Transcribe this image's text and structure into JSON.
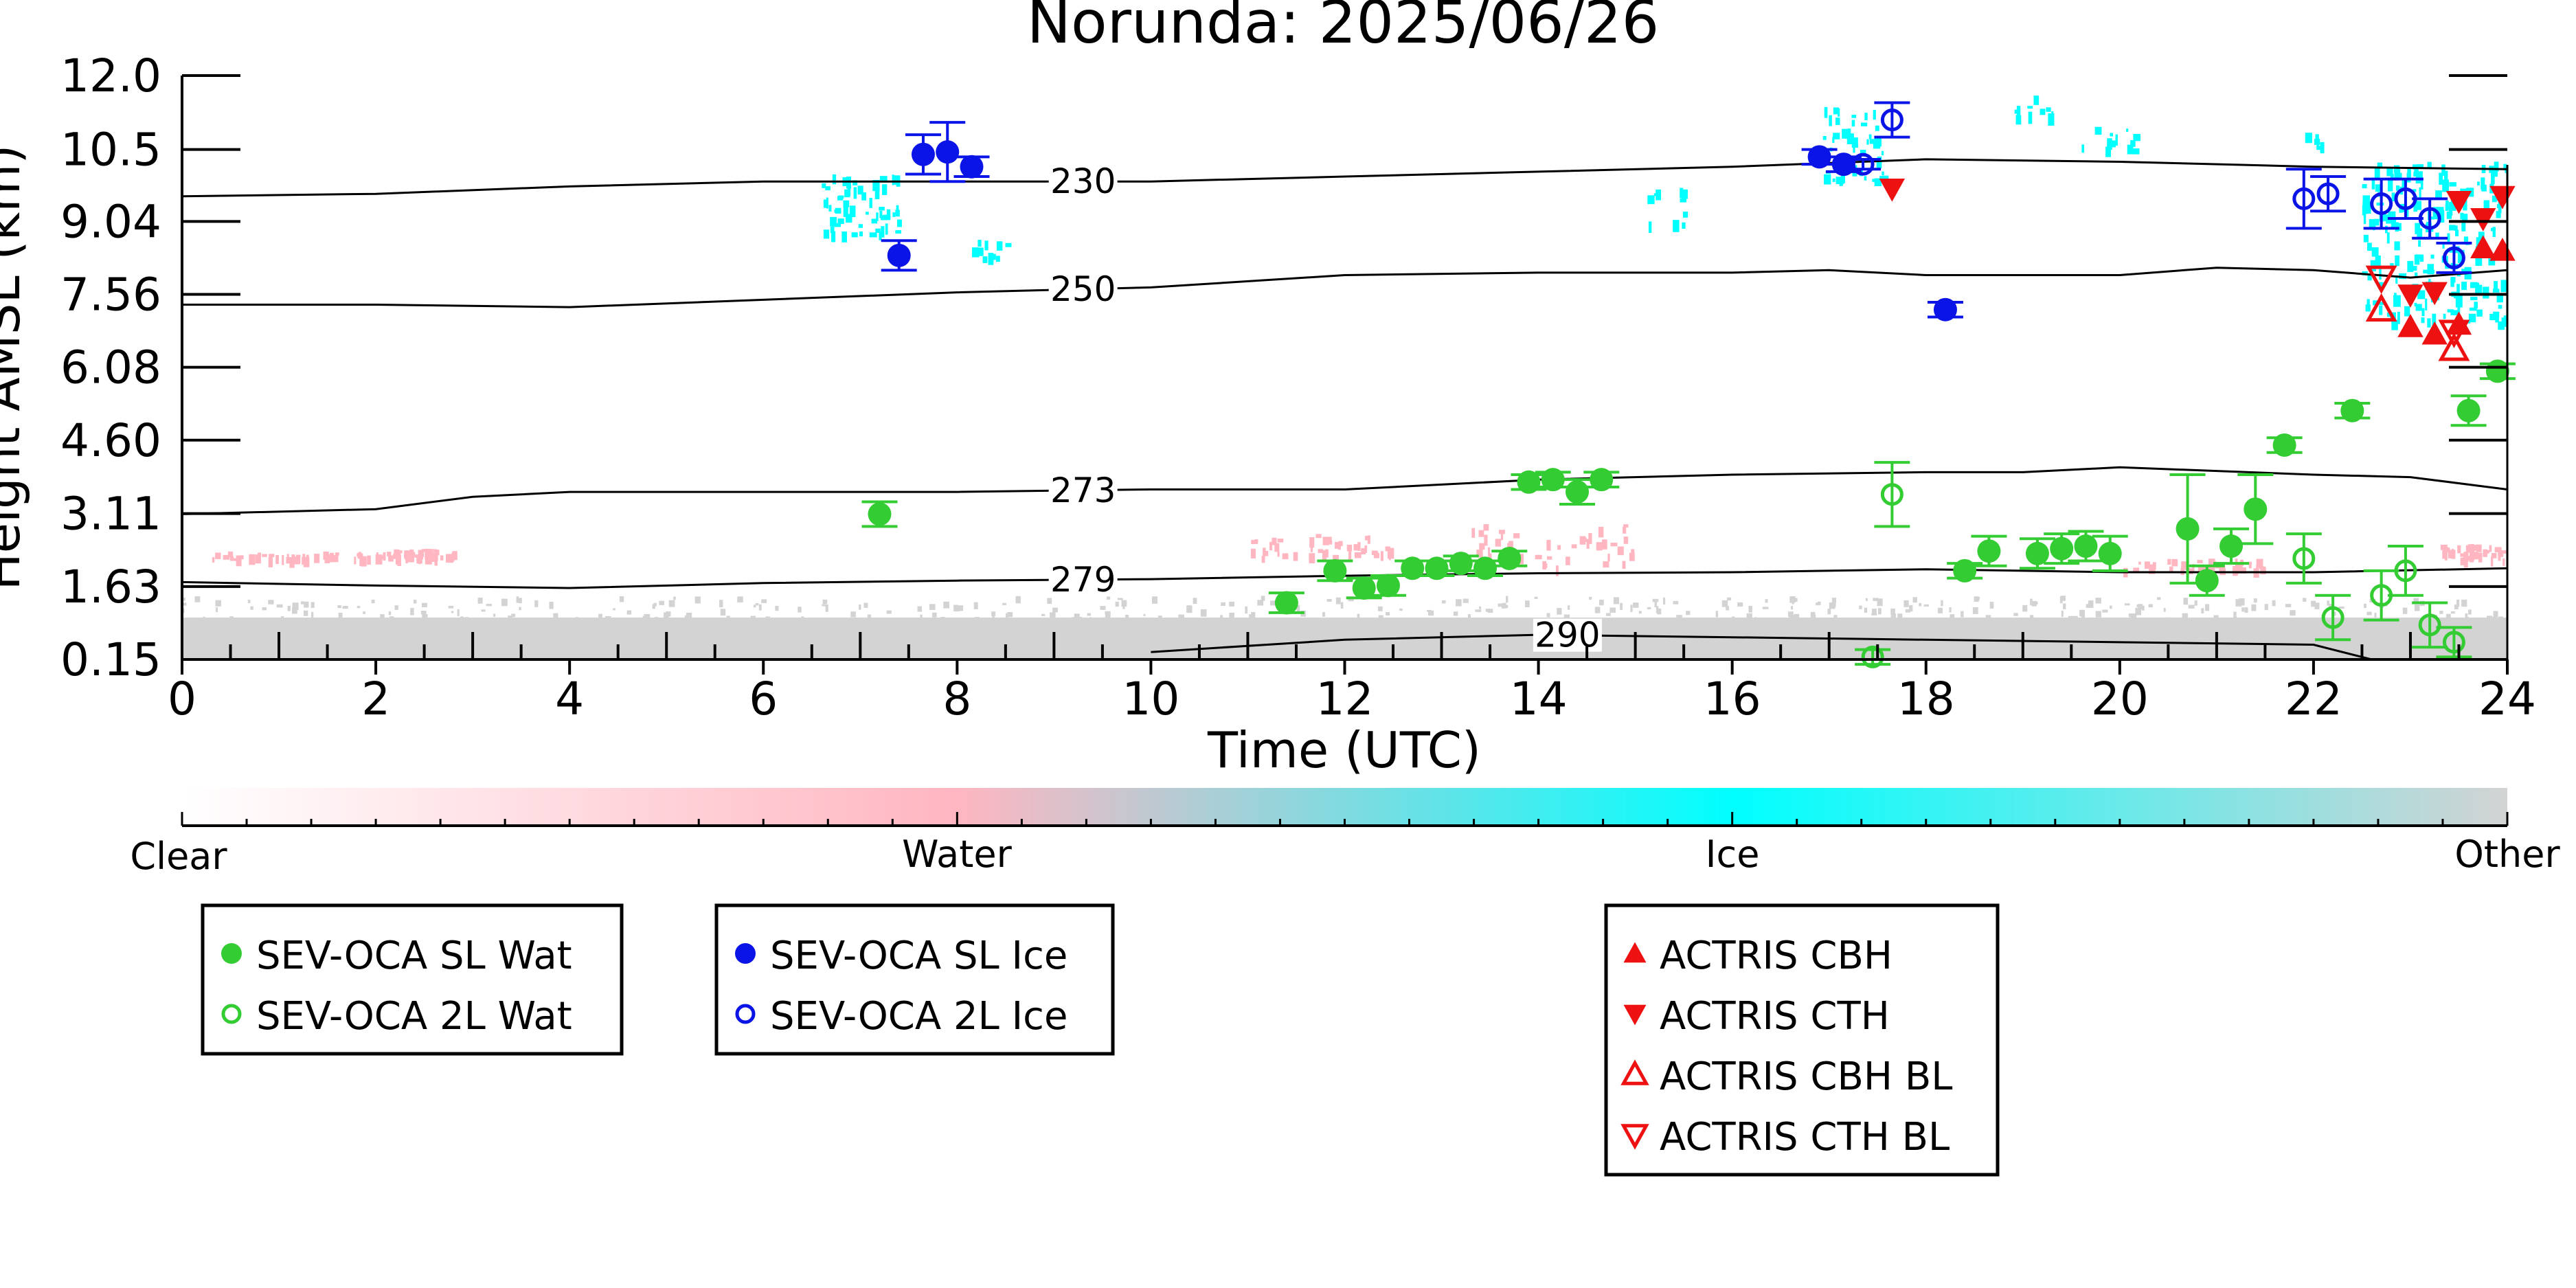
{
  "chart_data": {
    "type": "scatter",
    "title": "Norunda: 2025/06/26",
    "xlabel": "Time (UTC)",
    "ylabel": "Height AMSL (km)",
    "xlim": [
      0,
      24
    ],
    "ylim": [
      0.15,
      12.0
    ],
    "x_ticks": [
      "0",
      "2",
      "4",
      "6",
      "8",
      "10",
      "12",
      "14",
      "16",
      "18",
      "20",
      "22",
      "24"
    ],
    "y_ticks": [
      "0.15",
      "1.63",
      "3.11",
      "4.60",
      "6.08",
      "7.56",
      "9.04",
      "10.5",
      "12.0"
    ],
    "colorbar": {
      "labels": [
        "Clear",
        "Water",
        "Ice",
        "Other"
      ],
      "colors": [
        "#ffffff",
        "#ffb6c1",
        "#00ffff",
        "#d3d3d3"
      ]
    },
    "isotherms": [
      {
        "label": "230",
        "label_x": 9.3,
        "points": [
          [
            0,
            9.55
          ],
          [
            2,
            9.6
          ],
          [
            4,
            9.75
          ],
          [
            6,
            9.85
          ],
          [
            8,
            9.85
          ],
          [
            10,
            9.85
          ],
          [
            12,
            9.95
          ],
          [
            14,
            10.05
          ],
          [
            16,
            10.15
          ],
          [
            18,
            10.3
          ],
          [
            20,
            10.25
          ],
          [
            22,
            10.15
          ],
          [
            24,
            10.1
          ]
        ]
      },
      {
        "label": "250",
        "label_x": 9.3,
        "points": [
          [
            0,
            7.35
          ],
          [
            2,
            7.35
          ],
          [
            4,
            7.3
          ],
          [
            6,
            7.45
          ],
          [
            8,
            7.6
          ],
          [
            10,
            7.7
          ],
          [
            12,
            7.95
          ],
          [
            14,
            8.0
          ],
          [
            16,
            8.0
          ],
          [
            17,
            8.05
          ],
          [
            18,
            7.95
          ],
          [
            20,
            7.95
          ],
          [
            21,
            8.1
          ],
          [
            22,
            8.05
          ],
          [
            23,
            7.9
          ],
          [
            24,
            8.05
          ]
        ]
      },
      {
        "label": "273",
        "label_x": 9.3,
        "points": [
          [
            0,
            3.1
          ],
          [
            2,
            3.2
          ],
          [
            3,
            3.45
          ],
          [
            4,
            3.55
          ],
          [
            6,
            3.55
          ],
          [
            8,
            3.55
          ],
          [
            10,
            3.6
          ],
          [
            12,
            3.6
          ],
          [
            13,
            3.7
          ],
          [
            14,
            3.8
          ],
          [
            16,
            3.9
          ],
          [
            18,
            3.95
          ],
          [
            19,
            3.95
          ],
          [
            20,
            4.05
          ],
          [
            22,
            3.9
          ],
          [
            23,
            3.85
          ],
          [
            24,
            3.6
          ]
        ]
      },
      {
        "label": "279",
        "label_x": 9.3,
        "points": [
          [
            0,
            1.72
          ],
          [
            2,
            1.65
          ],
          [
            4,
            1.6
          ],
          [
            6,
            1.7
          ],
          [
            8,
            1.75
          ],
          [
            10,
            1.78
          ],
          [
            12,
            1.85
          ],
          [
            14,
            1.9
          ],
          [
            16,
            1.92
          ],
          [
            18,
            1.98
          ],
          [
            20,
            1.92
          ],
          [
            22,
            1.92
          ],
          [
            24,
            2.0
          ]
        ]
      },
      {
        "label": "290",
        "label_x": 14.3,
        "points": [
          [
            10,
            0.3
          ],
          [
            12,
            0.55
          ],
          [
            14,
            0.65
          ],
          [
            16,
            0.6
          ],
          [
            18,
            0.55
          ],
          [
            20,
            0.5
          ],
          [
            22,
            0.45
          ],
          [
            22.6,
            0.15
          ]
        ]
      }
    ],
    "series": [
      {
        "name": "SEV-OCA SL Wat",
        "color": "#33cc33",
        "marker": "filled-circle",
        "points": [
          [
            7.2,
            3.1,
            0.25
          ],
          [
            11.4,
            1.3,
            0.2
          ],
          [
            11.9,
            1.95,
            0.2
          ],
          [
            12.2,
            1.6,
            0.2
          ],
          [
            12.45,
            1.65,
            0.2
          ],
          [
            12.7,
            2.0,
            0.15
          ],
          [
            12.95,
            2.0,
            0.15
          ],
          [
            13.2,
            2.1,
            0.15
          ],
          [
            13.45,
            2.0,
            0.15
          ],
          [
            13.7,
            2.2,
            0.15
          ],
          [
            13.9,
            3.75,
            0.15
          ],
          [
            14.15,
            3.8,
            0.15
          ],
          [
            14.4,
            3.55,
            0.25
          ],
          [
            14.65,
            3.8,
            0.15
          ],
          [
            18.4,
            1.95,
            0.15
          ],
          [
            18.65,
            2.35,
            0.3
          ],
          [
            19.15,
            2.3,
            0.3
          ],
          [
            19.4,
            2.4,
            0.3
          ],
          [
            19.65,
            2.45,
            0.3
          ],
          [
            19.9,
            2.3,
            0.35
          ],
          [
            20.7,
            2.8,
            1.1
          ],
          [
            20.9,
            1.75,
            0.3
          ],
          [
            21.15,
            2.45,
            0.35
          ],
          [
            21.4,
            3.2,
            0.7
          ],
          [
            21.7,
            4.5,
            0.15
          ],
          [
            22.4,
            5.2,
            0.15
          ],
          [
            23.6,
            5.2,
            0.3
          ],
          [
            23.9,
            6.0,
            0.15
          ]
        ]
      },
      {
        "name": "SEV-OCA 2L Wat",
        "color": "#33cc33",
        "marker": "open-circle",
        "points": [
          [
            17.45,
            0.2,
            0.15
          ],
          [
            17.65,
            3.5,
            0.65
          ],
          [
            21.9,
            2.2,
            0.5
          ],
          [
            22.2,
            1.0,
            0.45
          ],
          [
            22.7,
            1.45,
            0.5
          ],
          [
            22.95,
            1.95,
            0.5
          ],
          [
            23.2,
            0.85,
            0.45
          ],
          [
            23.45,
            0.5,
            0.3
          ]
        ]
      },
      {
        "name": "SEV-OCA SL Ice",
        "color": "#0a14e6",
        "marker": "filled-circle",
        "points": [
          [
            7.4,
            8.35,
            0.3
          ],
          [
            7.65,
            10.4,
            0.4
          ],
          [
            7.9,
            10.45,
            0.6
          ],
          [
            8.15,
            10.15,
            0.2
          ],
          [
            16.9,
            10.35,
            0.15
          ],
          [
            17.15,
            10.2,
            0.15
          ],
          [
            18.2,
            7.25,
            0.15
          ]
        ]
      },
      {
        "name": "SEV-OCA 2L Ice",
        "color": "#0a14e6",
        "marker": "open-circle",
        "points": [
          [
            17.35,
            10.2,
            0.1
          ],
          [
            17.65,
            11.1,
            0.35
          ],
          [
            21.9,
            9.5,
            0.6
          ],
          [
            22.15,
            9.6,
            0.35
          ],
          [
            22.7,
            9.4,
            0.5
          ],
          [
            22.95,
            9.5,
            0.4
          ],
          [
            23.2,
            9.1,
            0.4
          ],
          [
            23.45,
            8.3,
            0.3
          ]
        ]
      },
      {
        "name": "ACTRIS CBH",
        "color": "#ee1111",
        "marker": "filled-triangle-up",
        "points": [
          [
            23.0,
            6.9
          ],
          [
            23.25,
            6.75
          ],
          [
            23.5,
            6.95
          ],
          [
            23.75,
            8.5
          ],
          [
            23.95,
            8.45
          ]
        ]
      },
      {
        "name": "ACTRIS CTH",
        "color": "#ee1111",
        "marker": "filled-triangle-down",
        "points": [
          [
            17.65,
            9.7
          ],
          [
            23.0,
            7.55
          ],
          [
            23.25,
            7.6
          ],
          [
            23.5,
            9.45
          ],
          [
            23.75,
            9.1
          ],
          [
            23.95,
            9.55
          ]
        ]
      },
      {
        "name": "ACTRIS CBH BL",
        "color": "#ee1111",
        "marker": "open-triangle-up",
        "points": [
          [
            22.7,
            7.25
          ],
          [
            23.45,
            6.45
          ]
        ]
      },
      {
        "name": "ACTRIS CTH BL",
        "color": "#ee1111",
        "marker": "open-triangle-down",
        "points": [
          [
            22.7,
            7.9
          ],
          [
            23.45,
            6.8
          ]
        ]
      }
    ],
    "legend": {
      "groups": [
        [
          "SEV-OCA SL Wat",
          "SEV-OCA 2L Wat"
        ],
        [
          "SEV-OCA SL Ice",
          "SEV-OCA 2L Ice"
        ],
        [
          "ACTRIS CBH",
          "ACTRIS CTH",
          "ACTRIS CBH BL",
          "ACTRIS CTH BL"
        ]
      ],
      "placement": "below"
    },
    "grid": false
  }
}
